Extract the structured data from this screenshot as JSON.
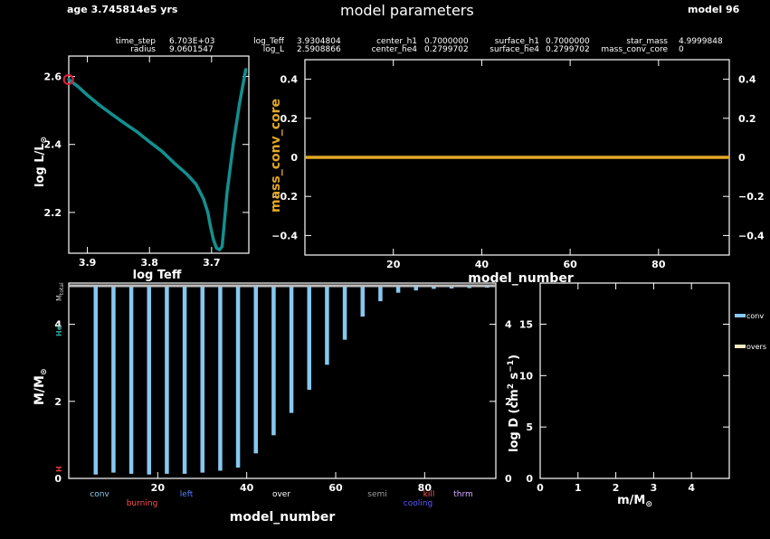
{
  "header": {
    "age": "age 3.745814e5 yrs",
    "title": "model parameters",
    "model": "model 96"
  },
  "params": {
    "row1": [
      {
        "label": "time_step",
        "value": "6.703E+03"
      },
      {
        "label": "log_Teff",
        "value": "3.9304804"
      },
      {
        "label": "center_h1",
        "value": "0.7000000"
      },
      {
        "label": "surface_h1",
        "value": "0.7000000"
      },
      {
        "label": "star_mass",
        "value": "4.9999848"
      }
    ],
    "row2": [
      {
        "label": "radius",
        "value": "9.0601547"
      },
      {
        "label": "log_L",
        "value": "2.5908866"
      },
      {
        "label": "center_he4",
        "value": "0.2799702"
      },
      {
        "label": "surface_he4",
        "value": "0.2799702"
      },
      {
        "label": "mass_conv_core",
        "value": "0"
      }
    ]
  },
  "colors": {
    "hr_track": "#138f8f",
    "hr_marker": "#d8203a",
    "mass_conv_core": "#e3a826",
    "conv_bar": "#87c8f0",
    "overshoot": "#f2e8c0",
    "axis": "#ffffff"
  },
  "chart_data": [
    {
      "type": "line",
      "id": "hr",
      "xlabel": "log Teff",
      "ylabel": "log L/L",
      "ylabel_sub": "⊙",
      "xlim": [
        3.93,
        3.64
      ],
      "ylim": [
        2.08,
        2.66
      ],
      "xticks": [
        3.9,
        3.8,
        3.7
      ],
      "yticks": [
        2.2,
        2.4,
        2.6
      ],
      "series": [
        {
          "x": [
            3.93,
            3.915,
            3.9,
            3.88,
            3.86,
            3.84,
            3.82,
            3.8,
            3.78,
            3.76,
            3.74,
            3.725,
            3.713,
            3.706,
            3.702,
            3.697,
            3.692,
            3.687,
            3.683,
            3.68,
            3.675,
            3.665,
            3.655,
            3.645
          ],
          "y": [
            2.591,
            2.57,
            2.545,
            2.515,
            2.488,
            2.462,
            2.437,
            2.408,
            2.38,
            2.345,
            2.313,
            2.283,
            2.24,
            2.2,
            2.16,
            2.12,
            2.095,
            2.09,
            2.1,
            2.16,
            2.26,
            2.4,
            2.52,
            2.62
          ]
        }
      ],
      "marker": {
        "x": 3.9305,
        "y": 2.5909
      }
    },
    {
      "type": "line",
      "id": "mass_conv_core",
      "xlabel": "model_number",
      "ylabel": "mass_conv_core",
      "xlim": [
        0,
        96
      ],
      "ylim": [
        -0.5,
        0.5
      ],
      "xticks": [
        20,
        40,
        60,
        80
      ],
      "yticks": [
        -0.4,
        -0.2,
        0,
        0.2,
        0.4
      ],
      "series": [
        {
          "x": [
            0,
            96
          ],
          "y": [
            0,
            0
          ]
        }
      ]
    },
    {
      "type": "bar",
      "id": "kippenhahn",
      "xlabel": "model_number",
      "ylabel": "M/M",
      "ylabel_sub": "⊙",
      "ylabel_right": "log D (cm",
      "ylabel_right_sup1": "2",
      "ylabel_right_mid": " s",
      "ylabel_right_sup2": "−1",
      "ylabel_right_end": ")",
      "xlim": [
        0,
        96
      ],
      "ylim": [
        0,
        5
      ],
      "ylim_right": [
        0,
        5
      ],
      "xticks": [
        20,
        40,
        60,
        80
      ],
      "yticks": [
        0,
        2,
        4
      ],
      "yticks_right": [
        0,
        2,
        4
      ],
      "side_labels": {
        "top": "M",
        "top_sub": "total",
        "he": "He",
        "h": "H"
      },
      "total_mass": 5.0,
      "bars": {
        "x": [
          6,
          10,
          14,
          18,
          22,
          26,
          30,
          34,
          38,
          42,
          46,
          50,
          54,
          58,
          62,
          66,
          70,
          74,
          78,
          82,
          86,
          90,
          94
        ],
        "top": [
          5.0,
          5.0,
          5.0,
          5.0,
          5.0,
          5.0,
          5.0,
          5.0,
          5.0,
          5.0,
          5.0,
          5.0,
          5.0,
          5.0,
          5.0,
          5.0,
          5.0,
          5.0,
          5.0,
          5.0,
          5.0,
          5.0,
          5.0
        ],
        "bottom": [
          0.1,
          0.15,
          0.12,
          0.1,
          0.12,
          0.12,
          0.15,
          0.2,
          0.28,
          0.65,
          1.12,
          1.7,
          2.3,
          2.95,
          3.6,
          4.2,
          4.6,
          4.82,
          4.88,
          4.92,
          4.93,
          4.94,
          4.95
        ]
      },
      "legend_labels": [
        {
          "text": "conv",
          "color": "#87c8f0"
        },
        {
          "text": "burning",
          "color": "#ff5050"
        },
        {
          "text": "left",
          "color": "#5a82ff"
        },
        {
          "text": "over",
          "color": "#ffffff"
        },
        {
          "text": "semi",
          "color": "#a0a0a0"
        },
        {
          "text": "cooling",
          "color": "#5a5aff"
        },
        {
          "text": "thrm",
          "color": "#d4a6ff"
        }
      ],
      "kill_label": "kill"
    },
    {
      "type": "line",
      "id": "mixing_profile",
      "xlabel": "m/M",
      "xlabel_sub": "⊙",
      "ylabel": "log D (cm",
      "ylabel_sup1": "2",
      "ylabel_mid": " s",
      "ylabel_sup2": "−1",
      "ylabel_end": ")",
      "xlim": [
        0,
        5
      ],
      "ylim": [
        0,
        19
      ],
      "xticks": [
        0,
        1,
        2,
        3,
        4
      ],
      "yticks": [
        0,
        5,
        10,
        15
      ],
      "legend": [
        {
          "name": "conv",
          "color": "#87c8f0"
        },
        {
          "name": "overs",
          "color": "#f2e8c0"
        }
      ]
    }
  ]
}
